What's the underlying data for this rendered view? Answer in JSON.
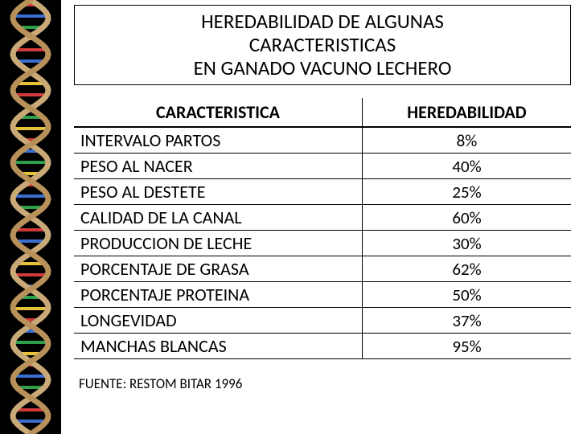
{
  "title": {
    "line1": "HEREDABILIDAD DE ALGUNAS",
    "line2": "CARACTERISTICAS",
    "line3": "EN GANADO VACUNO LECHERO"
  },
  "table": {
    "columns": [
      "CARACTERISTICA",
      "HEREDABILIDAD"
    ],
    "column_widths": [
      "58%",
      "42%"
    ],
    "header_align": [
      "center",
      "center"
    ],
    "cell_align": [
      "left",
      "center"
    ],
    "header_fontsize": 22,
    "cell_fontsize": 22,
    "border_color": "#000000",
    "rows": [
      [
        "INTERVALO PARTOS",
        "8%"
      ],
      [
        "PESO AL NACER",
        "40%"
      ],
      [
        "PESO AL DESTETE",
        "25%"
      ],
      [
        "CALIDAD DE LA CANAL",
        "60%"
      ],
      [
        "PRODUCCION DE LECHE",
        "30%"
      ],
      [
        "PORCENTAJE DE GRASA",
        "62%"
      ],
      [
        "PORCENTAJE PROTEINA",
        "50%"
      ],
      [
        "LONGEVIDAD",
        "37%"
      ],
      [
        "MANCHAS BLANCAS",
        "95%"
      ]
    ]
  },
  "source": "FUENTE: RESTOM BITAR 1996",
  "dna": {
    "background": "#000000",
    "strand1_color": "#c9a978",
    "strand2_color": "#b8915a",
    "rung_colors": [
      "#d03a3a",
      "#3a6fd0",
      "#2fa04a",
      "#e6c23a"
    ]
  }
}
